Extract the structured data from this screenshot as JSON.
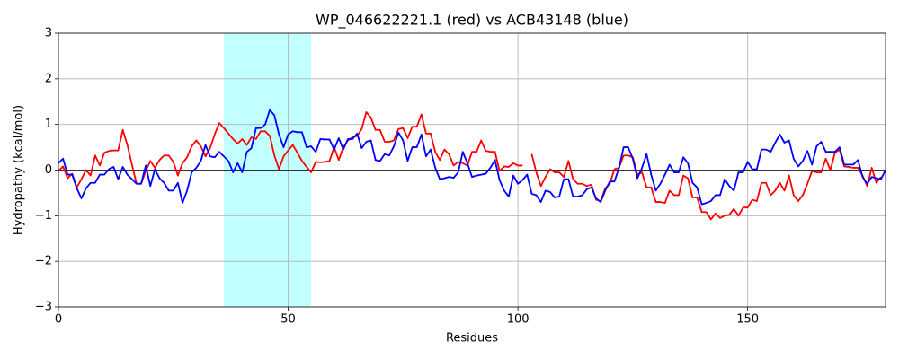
{
  "chart_data": {
    "type": "line",
    "title": "WP_046622221.1 (red) vs ACB43148 (blue)",
    "xlabel": "Residues",
    "ylabel": "Hydropathy (kcal/mol)",
    "x": [
      0,
      1,
      2,
      3,
      4,
      5,
      6,
      7,
      8,
      9,
      10,
      11,
      12,
      13,
      14,
      15,
      16,
      17,
      18,
      19,
      20,
      21,
      22,
      23,
      24,
      25,
      26,
      27,
      28,
      29,
      30,
      31,
      32,
      33,
      34,
      35,
      36,
      37,
      38,
      39,
      40,
      41,
      42,
      43,
      44,
      45,
      46,
      47,
      48,
      49,
      50,
      51,
      52,
      53,
      54,
      55,
      56,
      57,
      58,
      59,
      60,
      61,
      62,
      63,
      64,
      65,
      66,
      67,
      68,
      69,
      70,
      71,
      72,
      73,
      74,
      75,
      76,
      77,
      78,
      79,
      80,
      81,
      82,
      83,
      84,
      85,
      86,
      87,
      88,
      89,
      90,
      91,
      92,
      93,
      94,
      95,
      96,
      97,
      98,
      99,
      100,
      101,
      102,
      103,
      104,
      105,
      106,
      107,
      108,
      109,
      110,
      111,
      112,
      113,
      114,
      115,
      116,
      117,
      118,
      119,
      120,
      121,
      122,
      123,
      124,
      125,
      126,
      127,
      128,
      129,
      130,
      131,
      132,
      133,
      134,
      135,
      136,
      137,
      138,
      139,
      140,
      141,
      142,
      143,
      144,
      145,
      146,
      147,
      148,
      149,
      150,
      151,
      152,
      153,
      154,
      155,
      156,
      157,
      158,
      159,
      160,
      161,
      162,
      163,
      164,
      165,
      166,
      167,
      168,
      169,
      170,
      171,
      172,
      173,
      174,
      175,
      176,
      177,
      178,
      179,
      180
    ],
    "series": [
      {
        "color": "#ff0000",
        "values": [
          -0.02,
          0.08,
          -0.18,
          -0.08,
          -0.38,
          -0.2,
          0.0,
          -0.12,
          0.32,
          0.1,
          0.38,
          0.42,
          0.43,
          0.43,
          0.88,
          0.55,
          0.12,
          -0.3,
          -0.3,
          -0.02,
          0.2,
          0.05,
          0.22,
          0.32,
          0.32,
          0.18,
          -0.12,
          0.15,
          0.28,
          0.52,
          0.65,
          0.52,
          0.3,
          0.48,
          0.78,
          1.03,
          0.92,
          0.8,
          0.68,
          0.58,
          0.68,
          0.55,
          0.72,
          0.68,
          0.85,
          0.85,
          0.75,
          0.32,
          0.02,
          0.3,
          0.43,
          0.55,
          0.38,
          0.2,
          0.07,
          -0.05,
          0.18,
          0.17,
          0.18,
          0.2,
          0.5,
          0.22,
          0.5,
          0.65,
          0.72,
          0.75,
          0.9,
          1.27,
          1.15,
          0.88,
          0.88,
          0.62,
          0.62,
          0.65,
          0.9,
          0.92,
          0.7,
          0.95,
          0.95,
          1.22,
          0.8,
          0.8,
          0.4,
          0.22,
          0.45,
          0.35,
          0.1,
          0.18,
          0.15,
          0.1,
          0.4,
          0.4,
          0.65,
          0.42,
          0.4,
          0.4,
          -0.02,
          0.08,
          0.07,
          0.15,
          0.1,
          0.1,
          null,
          0.35,
          -0.05,
          -0.35,
          -0.15,
          0.02,
          -0.05,
          -0.05,
          -0.15,
          0.2,
          -0.2,
          -0.3,
          -0.3,
          -0.35,
          -0.32,
          -0.65,
          -0.68,
          -0.4,
          -0.3,
          0.02,
          0.05,
          0.32,
          0.32,
          0.28,
          -0.1,
          -0.05,
          -0.38,
          -0.38,
          -0.7,
          -0.7,
          -0.72,
          -0.45,
          -0.55,
          -0.55,
          -0.12,
          -0.18,
          -0.6,
          -0.6,
          -0.92,
          -0.92,
          -1.08,
          -0.95,
          -1.05,
          -1.0,
          -0.98,
          -0.85,
          -1.0,
          -0.82,
          -0.82,
          -0.65,
          -0.68,
          -0.28,
          -0.28,
          -0.55,
          -0.45,
          -0.28,
          -0.45,
          -0.12,
          -0.55,
          -0.68,
          -0.55,
          -0.3,
          -0.02,
          -0.05,
          -0.05,
          0.25,
          0.0,
          0.38,
          0.45,
          0.08,
          0.07,
          0.05,
          0.05,
          -0.12,
          -0.35,
          0.05,
          -0.28,
          -0.15,
          null
        ]
      },
      {
        "color": "#0000ff",
        "values": [
          0.15,
          0.25,
          -0.1,
          -0.1,
          -0.4,
          -0.62,
          -0.4,
          -0.28,
          -0.28,
          -0.1,
          -0.1,
          0.02,
          0.07,
          -0.2,
          0.07,
          -0.1,
          -0.2,
          -0.3,
          -0.3,
          0.1,
          -0.35,
          0.02,
          -0.18,
          -0.28,
          -0.45,
          -0.45,
          -0.28,
          -0.72,
          -0.45,
          -0.05,
          0.05,
          0.2,
          0.55,
          0.3,
          0.28,
          0.4,
          0.3,
          0.2,
          -0.05,
          0.15,
          -0.05,
          0.4,
          0.48,
          0.92,
          0.92,
          1.0,
          1.32,
          1.2,
          0.78,
          0.5,
          0.78,
          0.85,
          0.83,
          0.83,
          0.5,
          0.52,
          0.4,
          0.68,
          0.67,
          0.67,
          0.45,
          0.7,
          0.45,
          0.68,
          0.68,
          0.8,
          0.48,
          0.62,
          0.65,
          0.22,
          0.2,
          0.35,
          0.32,
          0.52,
          0.82,
          0.65,
          0.2,
          0.5,
          0.5,
          0.78,
          0.3,
          0.45,
          0.05,
          -0.2,
          -0.18,
          -0.15,
          -0.17,
          -0.05,
          0.4,
          0.15,
          -0.15,
          -0.12,
          -0.1,
          -0.08,
          0.05,
          0.22,
          -0.22,
          -0.45,
          -0.58,
          -0.12,
          -0.3,
          -0.22,
          -0.1,
          -0.52,
          -0.55,
          -0.7,
          -0.45,
          -0.48,
          -0.6,
          -0.58,
          -0.2,
          -0.2,
          -0.58,
          -0.58,
          -0.55,
          -0.42,
          -0.38,
          -0.62,
          -0.7,
          -0.45,
          -0.25,
          -0.25,
          0.05,
          0.5,
          0.5,
          0.25,
          -0.18,
          0.05,
          0.35,
          -0.1,
          -0.45,
          -0.3,
          -0.1,
          0.12,
          -0.05,
          -0.05,
          0.28,
          0.15,
          -0.28,
          -0.38,
          -0.75,
          -0.72,
          -0.68,
          -0.55,
          -0.55,
          -0.2,
          -0.35,
          -0.45,
          -0.05,
          -0.05,
          0.18,
          0.02,
          0.02,
          0.45,
          0.45,
          0.4,
          0.6,
          0.78,
          0.6,
          0.65,
          0.25,
          0.08,
          0.2,
          0.42,
          0.12,
          0.52,
          0.62,
          0.4,
          0.4,
          0.4,
          0.5,
          0.12,
          0.12,
          0.12,
          0.22,
          -0.15,
          -0.3,
          -0.15,
          -0.18,
          -0.2,
          0.0
        ]
      }
    ],
    "xlim": [
      0,
      180
    ],
    "ylim": [
      -3,
      3
    ],
    "xticks": [
      0,
      50,
      100,
      150
    ],
    "yticks": [
      {
        "value": -3,
        "label": "−3"
      },
      {
        "value": -2,
        "label": "−2"
      },
      {
        "value": -1,
        "label": "−1"
      },
      0,
      1,
      2,
      3
    ],
    "highlight": {
      "xmin": 36,
      "xmax": 55,
      "color": "#c2ffff"
    },
    "hline": {
      "y": 0,
      "color": "#000000"
    },
    "grid": true
  }
}
